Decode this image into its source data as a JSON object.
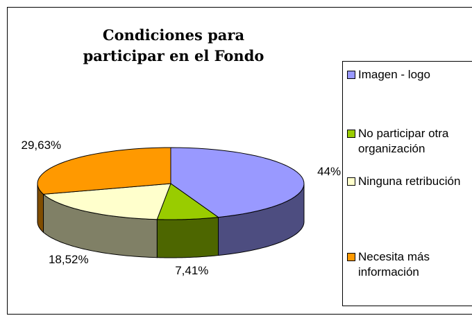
{
  "chart_data": {
    "type": "pie",
    "title": "Condiciones para participar en el Fondo",
    "categories": [
      "Imagen - logo",
      "No participar otra organización",
      "Ninguna retribución",
      "Necesita más información"
    ],
    "values": [
      44,
      7.41,
      18.52,
      29.63
    ],
    "value_labels": [
      "44%",
      "7,41%",
      "18,52%",
      "29,63%"
    ],
    "colors": [
      "#9999ff",
      "#99cc00",
      "#ffffcc",
      "#ff9900"
    ],
    "side_colors": [
      "#4d4d80",
      "#4d6600",
      "#808066",
      "#804d00"
    ],
    "legend": "right"
  }
}
